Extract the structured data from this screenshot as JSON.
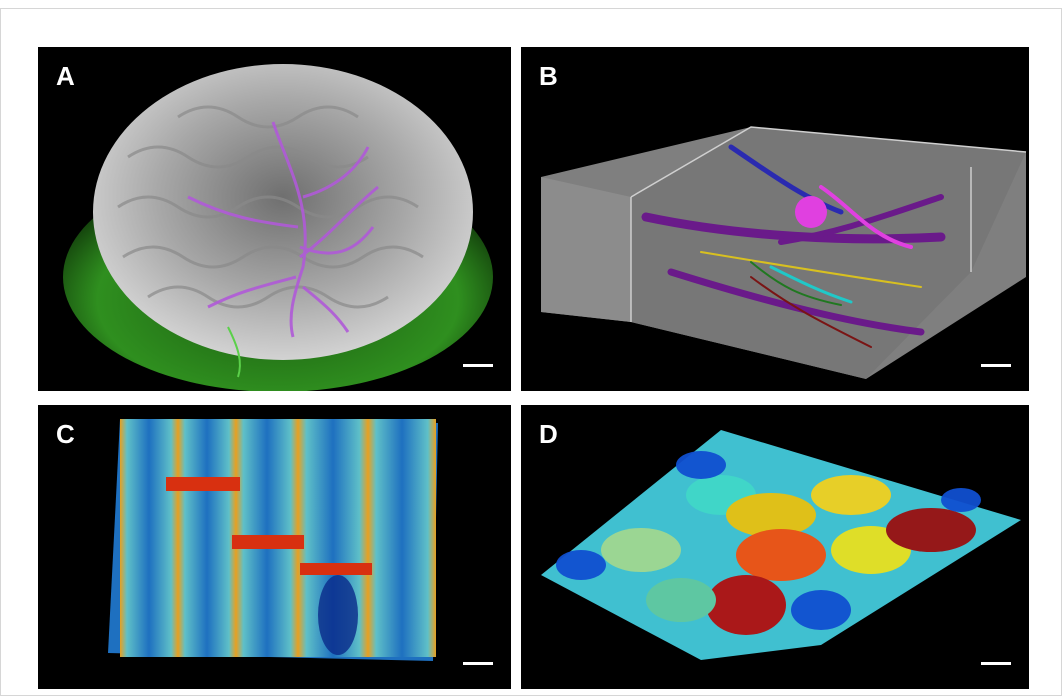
{
  "panels": [
    {
      "label": "A",
      "description_icon": "brain-vasculature-render"
    },
    {
      "label": "B",
      "description_icon": "em-volume-neuron-tracing"
    },
    {
      "label": "C",
      "description_icon": "heatmap-surface-cells"
    },
    {
      "label": "D",
      "description_icon": "segmented-cell-surface"
    }
  ],
  "colors": {
    "panel_background": "#000000",
    "label": "#ffffff",
    "scale_bar": "#ffffff",
    "tissue_green": "#2f8f1f",
    "vessel_magenta": "#b05ad8"
  }
}
